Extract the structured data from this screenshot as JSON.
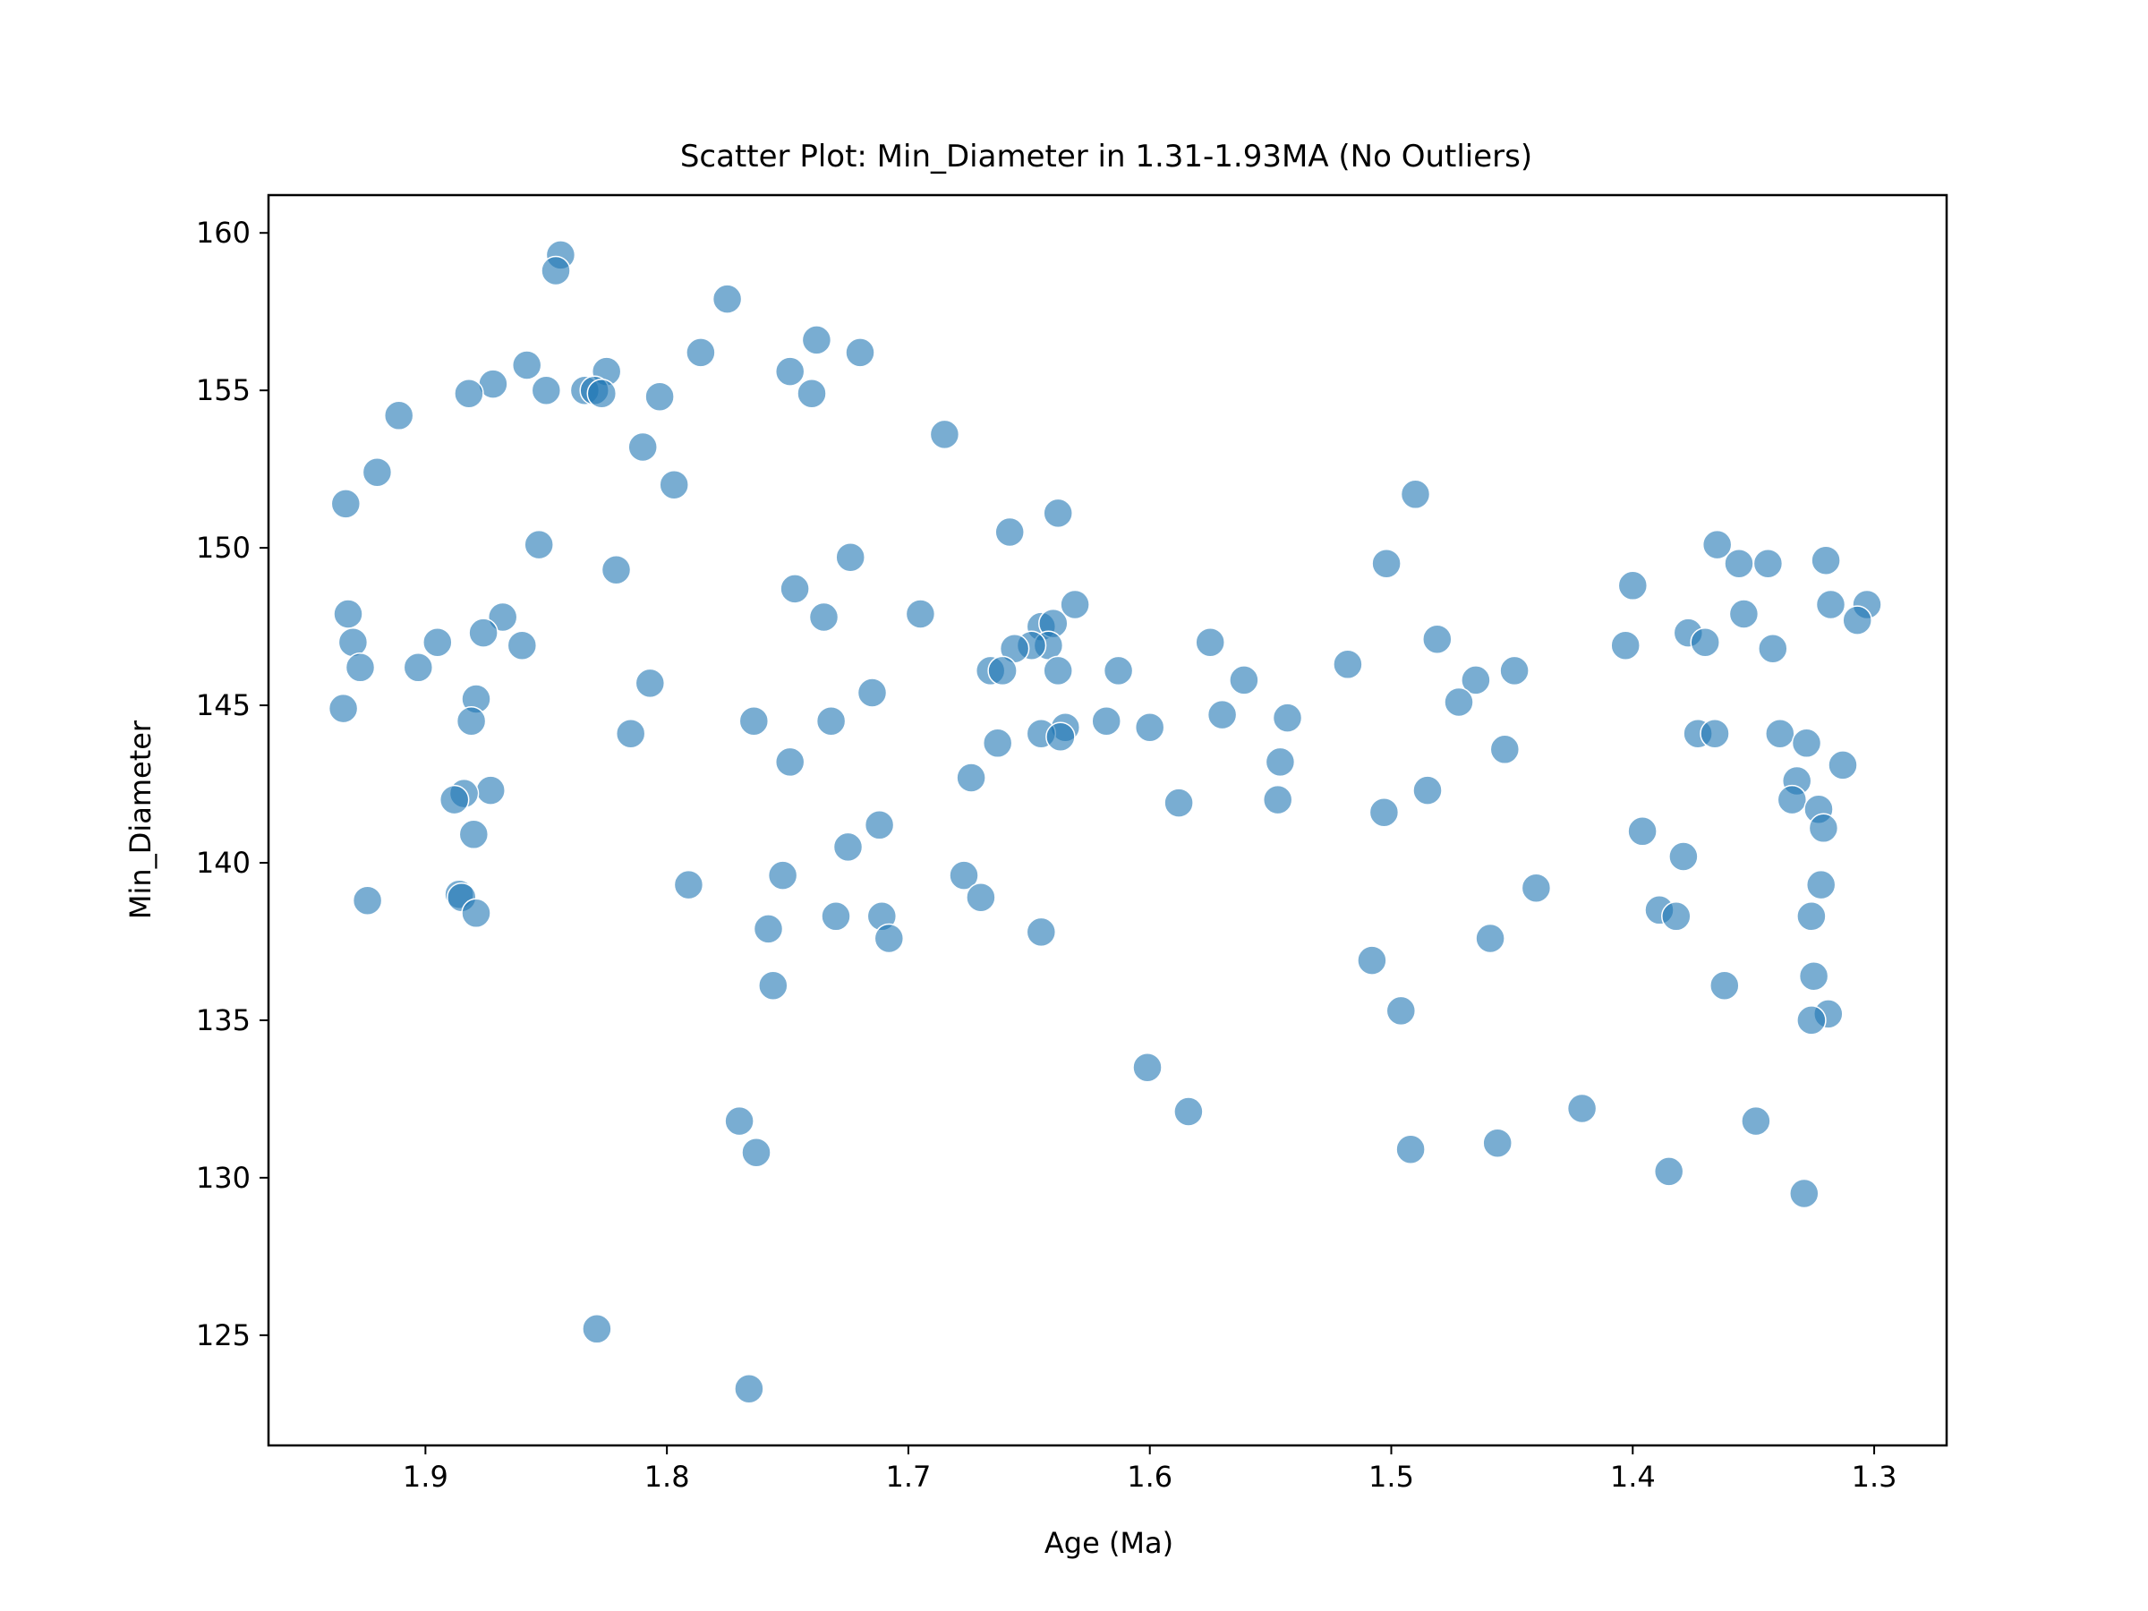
{
  "chart_data": {
    "type": "scatter",
    "title": "Scatter Plot: Min_Diameter in 1.31-1.93MA (No Outliers)",
    "xlabel": "Age (Ma)",
    "ylabel": "Min_Diameter",
    "x_inverted": true,
    "xlim": [
      1.965,
      1.27
    ],
    "ylim": [
      121.5,
      161.2
    ],
    "x_ticks": [
      1.9,
      1.8,
      1.7,
      1.6,
      1.5,
      1.4,
      1.3
    ],
    "x_tick_labels": [
      "1.9",
      "1.8",
      "1.7",
      "1.6",
      "1.5",
      "1.4",
      "1.3"
    ],
    "y_ticks": [
      125,
      130,
      135,
      140,
      145,
      150,
      155,
      160
    ],
    "y_tick_labels": [
      "125",
      "130",
      "135",
      "140",
      "145",
      "150",
      "155",
      "160"
    ],
    "grid": false,
    "marker_color": "#1f77b4",
    "marker_alpha": 0.6,
    "points": [
      [
        1.844,
        159.3
      ],
      [
        1.846,
        158.8
      ],
      [
        1.775,
        157.9
      ],
      [
        1.738,
        156.6
      ],
      [
        1.786,
        156.2
      ],
      [
        1.72,
        156.2
      ],
      [
        1.858,
        155.8
      ],
      [
        1.825,
        155.6
      ],
      [
        1.749,
        155.6
      ],
      [
        1.872,
        155.2
      ],
      [
        1.85,
        155.0
      ],
      [
        1.834,
        155.0
      ],
      [
        1.83,
        155.0
      ],
      [
        1.882,
        154.9
      ],
      [
        1.827,
        154.9
      ],
      [
        1.803,
        154.8
      ],
      [
        1.74,
        154.9
      ],
      [
        1.911,
        154.2
      ],
      [
        1.685,
        153.6
      ],
      [
        1.81,
        153.2
      ],
      [
        1.92,
        152.4
      ],
      [
        1.797,
        152.0
      ],
      [
        1.933,
        151.4
      ],
      [
        1.49,
        151.7
      ],
      [
        1.638,
        151.1
      ],
      [
        1.658,
        150.5
      ],
      [
        1.853,
        150.1
      ],
      [
        1.365,
        150.1
      ],
      [
        1.724,
        149.7
      ],
      [
        1.502,
        149.5
      ],
      [
        1.356,
        149.5
      ],
      [
        1.344,
        149.5
      ],
      [
        1.32,
        149.6
      ],
      [
        1.821,
        149.3
      ],
      [
        1.4,
        148.8
      ],
      [
        1.747,
        148.7
      ],
      [
        1.318,
        148.2
      ],
      [
        1.303,
        148.2
      ],
      [
        1.631,
        148.2
      ],
      [
        1.932,
        147.9
      ],
      [
        1.695,
        147.9
      ],
      [
        1.735,
        147.8
      ],
      [
        1.868,
        147.8
      ],
      [
        1.354,
        147.9
      ],
      [
        1.307,
        147.7
      ],
      [
        1.645,
        147.5
      ],
      [
        1.64,
        147.6
      ],
      [
        1.876,
        147.3
      ],
      [
        1.377,
        147.3
      ],
      [
        1.93,
        147.0
      ],
      [
        1.895,
        147.0
      ],
      [
        1.575,
        147.0
      ],
      [
        1.481,
        147.1
      ],
      [
        1.37,
        147.0
      ],
      [
        1.86,
        146.9
      ],
      [
        1.642,
        146.9
      ],
      [
        1.649,
        146.9
      ],
      [
        1.656,
        146.8
      ],
      [
        1.403,
        146.9
      ],
      [
        1.342,
        146.8
      ],
      [
        1.927,
        146.2
      ],
      [
        1.903,
        146.2
      ],
      [
        1.666,
        146.1
      ],
      [
        1.661,
        146.1
      ],
      [
        1.638,
        146.1
      ],
      [
        1.613,
        146.1
      ],
      [
        1.518,
        146.3
      ],
      [
        1.449,
        146.1
      ],
      [
        1.561,
        145.8
      ],
      [
        1.465,
        145.8
      ],
      [
        1.807,
        145.7
      ],
      [
        1.715,
        145.4
      ],
      [
        1.879,
        145.2
      ],
      [
        1.472,
        145.1
      ],
      [
        1.934,
        144.9
      ],
      [
        1.57,
        144.7
      ],
      [
        1.543,
        144.6
      ],
      [
        1.881,
        144.5
      ],
      [
        1.764,
        144.5
      ],
      [
        1.732,
        144.5
      ],
      [
        1.618,
        144.5
      ],
      [
        1.6,
        144.3
      ],
      [
        1.635,
        144.3
      ],
      [
        1.815,
        144.1
      ],
      [
        1.645,
        144.1
      ],
      [
        1.637,
        144.0
      ],
      [
        1.373,
        144.1
      ],
      [
        1.366,
        144.1
      ],
      [
        1.339,
        144.1
      ],
      [
        1.328,
        143.8
      ],
      [
        1.663,
        143.8
      ],
      [
        1.453,
        143.6
      ],
      [
        1.749,
        143.2
      ],
      [
        1.546,
        143.2
      ],
      [
        1.313,
        143.1
      ],
      [
        1.332,
        142.6
      ],
      [
        1.674,
        142.7
      ],
      [
        1.873,
        142.3
      ],
      [
        1.884,
        142.2
      ],
      [
        1.485,
        142.3
      ],
      [
        1.888,
        142.0
      ],
      [
        1.588,
        141.9
      ],
      [
        1.547,
        142.0
      ],
      [
        1.334,
        142.0
      ],
      [
        1.323,
        141.7
      ],
      [
        1.503,
        141.6
      ],
      [
        1.712,
        141.2
      ],
      [
        1.321,
        141.1
      ],
      [
        1.88,
        140.9
      ],
      [
        1.396,
        141.0
      ],
      [
        1.725,
        140.5
      ],
      [
        1.379,
        140.2
      ],
      [
        1.677,
        139.6
      ],
      [
        1.752,
        139.6
      ],
      [
        1.791,
        139.3
      ],
      [
        1.44,
        139.2
      ],
      [
        1.322,
        139.3
      ],
      [
        1.886,
        139.0
      ],
      [
        1.885,
        138.9
      ],
      [
        1.67,
        138.9
      ],
      [
        1.924,
        138.8
      ],
      [
        1.389,
        138.5
      ],
      [
        1.73,
        138.3
      ],
      [
        1.711,
        138.3
      ],
      [
        1.879,
        138.4
      ],
      [
        1.382,
        138.3
      ],
      [
        1.326,
        138.3
      ],
      [
        1.758,
        137.9
      ],
      [
        1.645,
        137.8
      ],
      [
        1.708,
        137.6
      ],
      [
        1.459,
        137.6
      ],
      [
        1.508,
        136.9
      ],
      [
        1.325,
        136.4
      ],
      [
        1.756,
        136.1
      ],
      [
        1.362,
        136.1
      ],
      [
        1.496,
        135.3
      ],
      [
        1.319,
        135.2
      ],
      [
        1.326,
        135.0
      ],
      [
        1.601,
        133.5
      ],
      [
        1.584,
        132.1
      ],
      [
        1.421,
        132.2
      ],
      [
        1.349,
        131.8
      ],
      [
        1.77,
        131.8
      ],
      [
        1.763,
        130.8
      ],
      [
        1.492,
        130.9
      ],
      [
        1.456,
        131.1
      ],
      [
        1.385,
        130.2
      ],
      [
        1.329,
        129.5
      ],
      [
        1.829,
        125.2
      ],
      [
        1.766,
        123.3
      ]
    ]
  }
}
